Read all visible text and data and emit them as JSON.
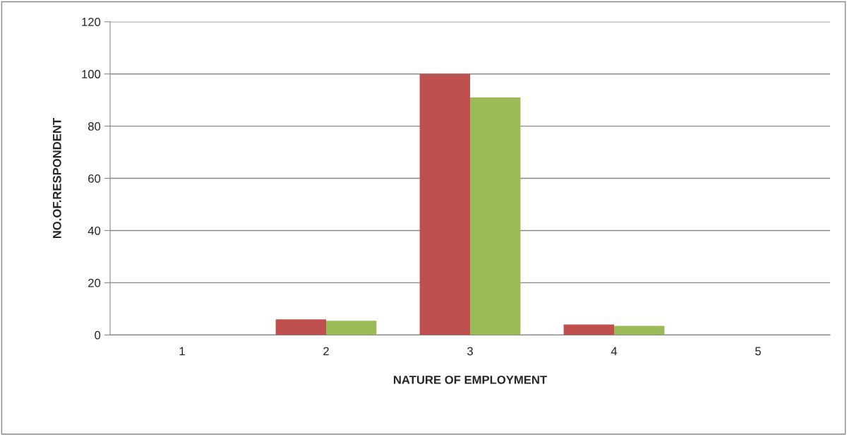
{
  "chart_data": {
    "type": "bar",
    "xlabel": "NATURE OF EMPLOYMENT",
    "ylabel": "NO.OF.RESPONDENT",
    "categories": [
      "1",
      "2",
      "3",
      "4",
      "5"
    ],
    "series": [
      {
        "color": "#c0504d",
        "values": [
          null,
          6,
          100,
          4,
          null
        ]
      },
      {
        "color": "#9bbb59",
        "values": [
          null,
          5.4,
          91,
          3.5,
          null
        ]
      }
    ],
    "ylim": [
      0,
      120
    ],
    "yticks": [
      0,
      20,
      40,
      60,
      80,
      100,
      120
    ],
    "grid": "y",
    "legend": false
  }
}
